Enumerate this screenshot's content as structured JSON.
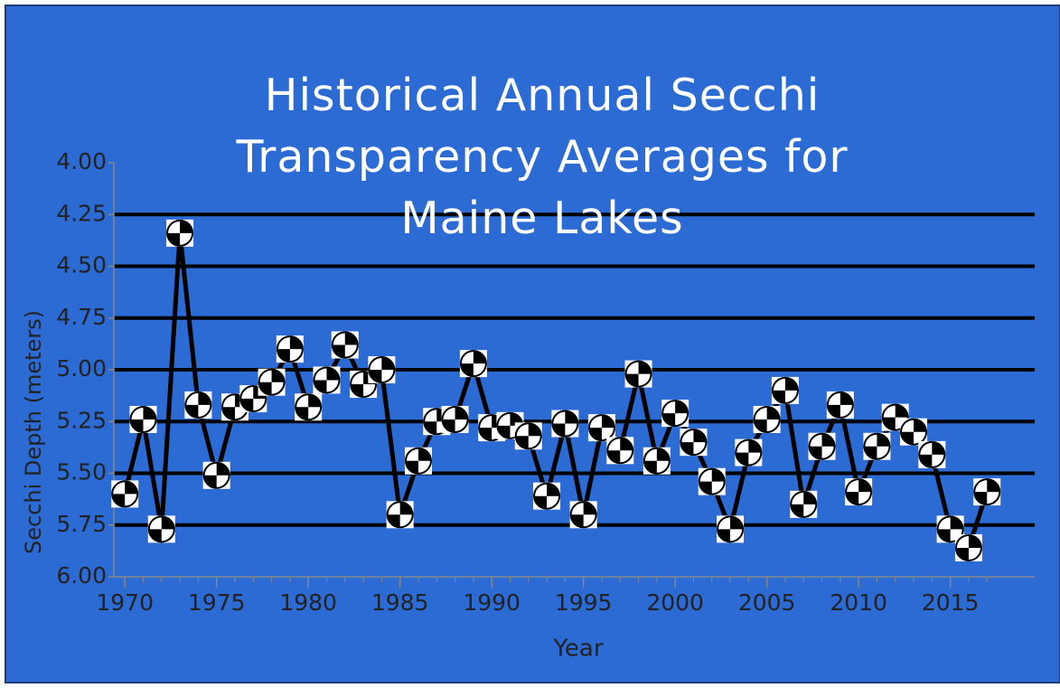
{
  "chart_data": {
    "type": "line",
    "title": "Historical Annual Secchi Transparency Averages for Maine Lakes",
    "x_label": "Year",
    "y_label": "Secchi Depth (meters)",
    "x": [
      1970,
      1971,
      1972,
      1973,
      1974,
      1975,
      1976,
      1977,
      1978,
      1979,
      1980,
      1981,
      1982,
      1983,
      1984,
      1985,
      1986,
      1987,
      1988,
      1989,
      1990,
      1991,
      1992,
      1993,
      1994,
      1995,
      1996,
      1997,
      1998,
      1999,
      2000,
      2001,
      2002,
      2003,
      2004,
      2005,
      2006,
      2007,
      2008,
      2009,
      2010,
      2011,
      2012,
      2013,
      2014,
      2015,
      2016,
      2017
    ],
    "values": [
      5.6,
      5.24,
      5.77,
      4.34,
      5.17,
      5.51,
      5.18,
      5.14,
      5.06,
      4.9,
      5.18,
      5.05,
      4.88,
      5.07,
      5.0,
      5.7,
      5.44,
      5.25,
      5.24,
      4.97,
      5.28,
      5.27,
      5.32,
      5.61,
      5.26,
      5.7,
      5.28,
      5.39,
      5.02,
      5.44,
      5.21,
      5.35,
      5.54,
      5.77,
      5.4,
      5.24,
      5.1,
      5.65,
      5.37,
      5.17,
      5.59,
      5.37,
      5.23,
      5.3,
      5.41,
      5.77,
      5.86,
      5.59
    ],
    "color": "#000000",
    "xlim": [
      1969.4,
      2019.6
    ],
    "xticks": [
      1970,
      1975,
      1980,
      1985,
      1990,
      1995,
      2000,
      2005,
      2010,
      2015
    ],
    "ylim": [
      4,
      6
    ],
    "y_inverted": true,
    "yticks": [
      {
        "value": 4,
        "label": "4.00"
      },
      {
        "value": 4.25,
        "label": "4.25"
      },
      {
        "value": 4.5,
        "label": "4.50"
      },
      {
        "value": 4.75,
        "label": "4.75"
      },
      {
        "value": 5,
        "label": "5.00"
      },
      {
        "value": 5.25,
        "label": "5.25"
      },
      {
        "value": 5.5,
        "label": "5.50"
      },
      {
        "value": 5.75,
        "label": "5.75"
      },
      {
        "value": 6,
        "label": "6.00"
      }
    ],
    "grid": true
  }
}
